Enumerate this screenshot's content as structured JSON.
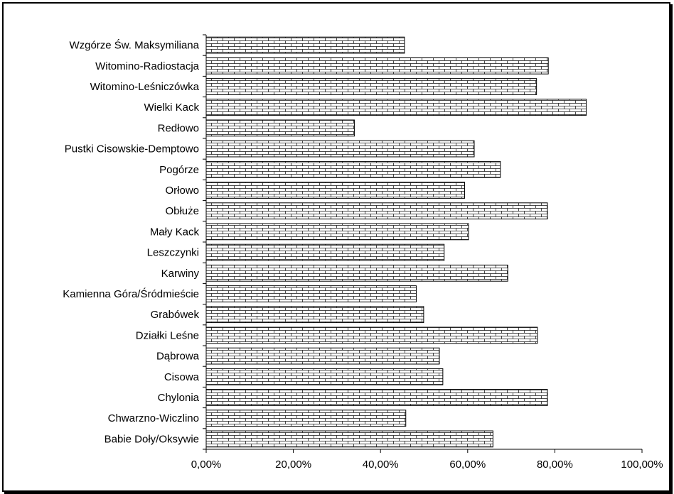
{
  "chart_data": {
    "type": "bar",
    "orientation": "horizontal",
    "title": "",
    "xlabel": "",
    "ylabel": "",
    "categories": [
      "Wzgórze Św. Maksymiliana",
      "Witomino-Radiostacja",
      "Witomino-Leśniczówka",
      "Wielki Kack",
      "Redłowo",
      "Pustki Cisowskie-Demptowo",
      "Pogórze",
      "Orłowo",
      "Obłuże",
      "Mały Kack",
      "Leszczynki",
      "Karwiny",
      "Kamienna Góra/Śródmieście",
      "Grabówek",
      "Działki Leśne",
      "Dąbrowa",
      "Cisowa",
      "Chylonia",
      "Chwarzno-Wiczlino",
      "Babie Doły/Oksywie"
    ],
    "values": [
      45.5,
      78.5,
      75.8,
      87.2,
      34.0,
      61.5,
      67.5,
      59.3,
      78.3,
      60.2,
      54.6,
      69.2,
      48.2,
      49.9,
      76.0,
      53.5,
      54.3,
      78.3,
      45.8,
      65.8
    ],
    "xlim": [
      0,
      100
    ],
    "x_ticks": [
      "0,00%",
      "20,00%",
      "40,00%",
      "60,00%",
      "80,00%",
      "100,00%"
    ],
    "grid": false,
    "legend": "none",
    "bar_fill": "brick-pattern",
    "colors": {
      "bar_stroke": "#000000",
      "bar_pattern": "#000000",
      "background": "#ffffff"
    }
  }
}
